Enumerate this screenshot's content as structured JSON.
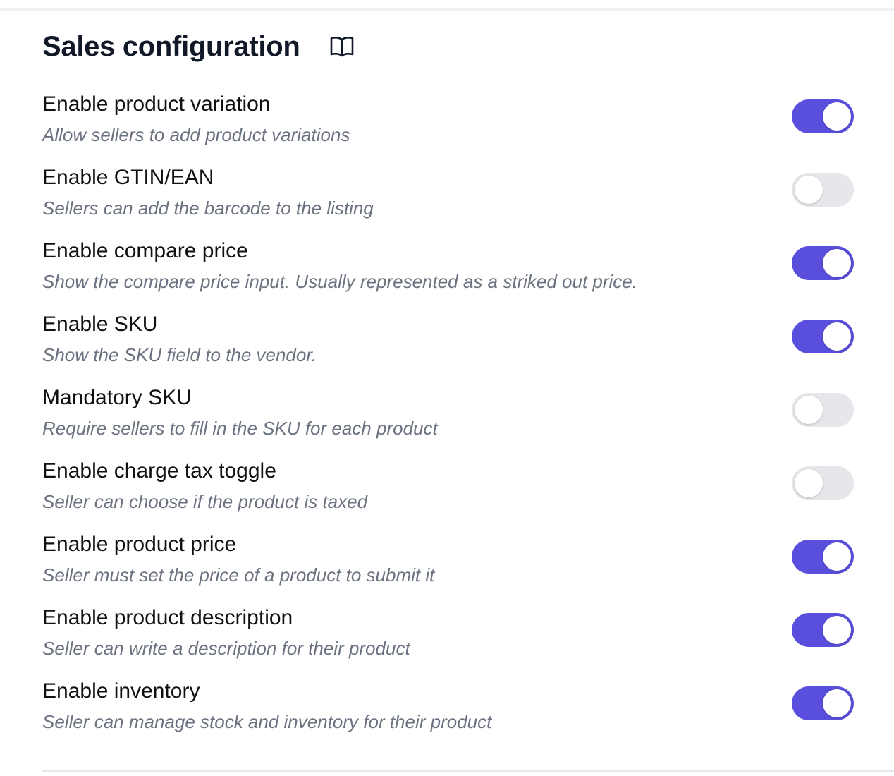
{
  "header": {
    "title": "Sales configuration"
  },
  "settings": [
    {
      "label": "Enable product variation",
      "description": "Allow sellers to add product variations",
      "enabled": true
    },
    {
      "label": "Enable GTIN/EAN",
      "description": "Sellers can add the barcode to the listing",
      "enabled": false
    },
    {
      "label": "Enable compare price",
      "description": "Show the compare price input. Usually represented as a striked out price.",
      "enabled": true
    },
    {
      "label": "Enable SKU",
      "description": "Show the SKU field to the vendor.",
      "enabled": true
    },
    {
      "label": "Mandatory SKU",
      "description": "Require sellers to fill in the SKU for each product",
      "enabled": false
    },
    {
      "label": "Enable charge tax toggle",
      "description": "Seller can choose if the product is taxed",
      "enabled": false
    },
    {
      "label": "Enable product price",
      "description": "Seller must set the price of a product to submit it",
      "enabled": true
    },
    {
      "label": "Enable product description",
      "description": "Seller can write a description for their product",
      "enabled": true
    },
    {
      "label": "Enable inventory",
      "description": "Seller can manage stock and inventory for their product",
      "enabled": true
    }
  ]
}
